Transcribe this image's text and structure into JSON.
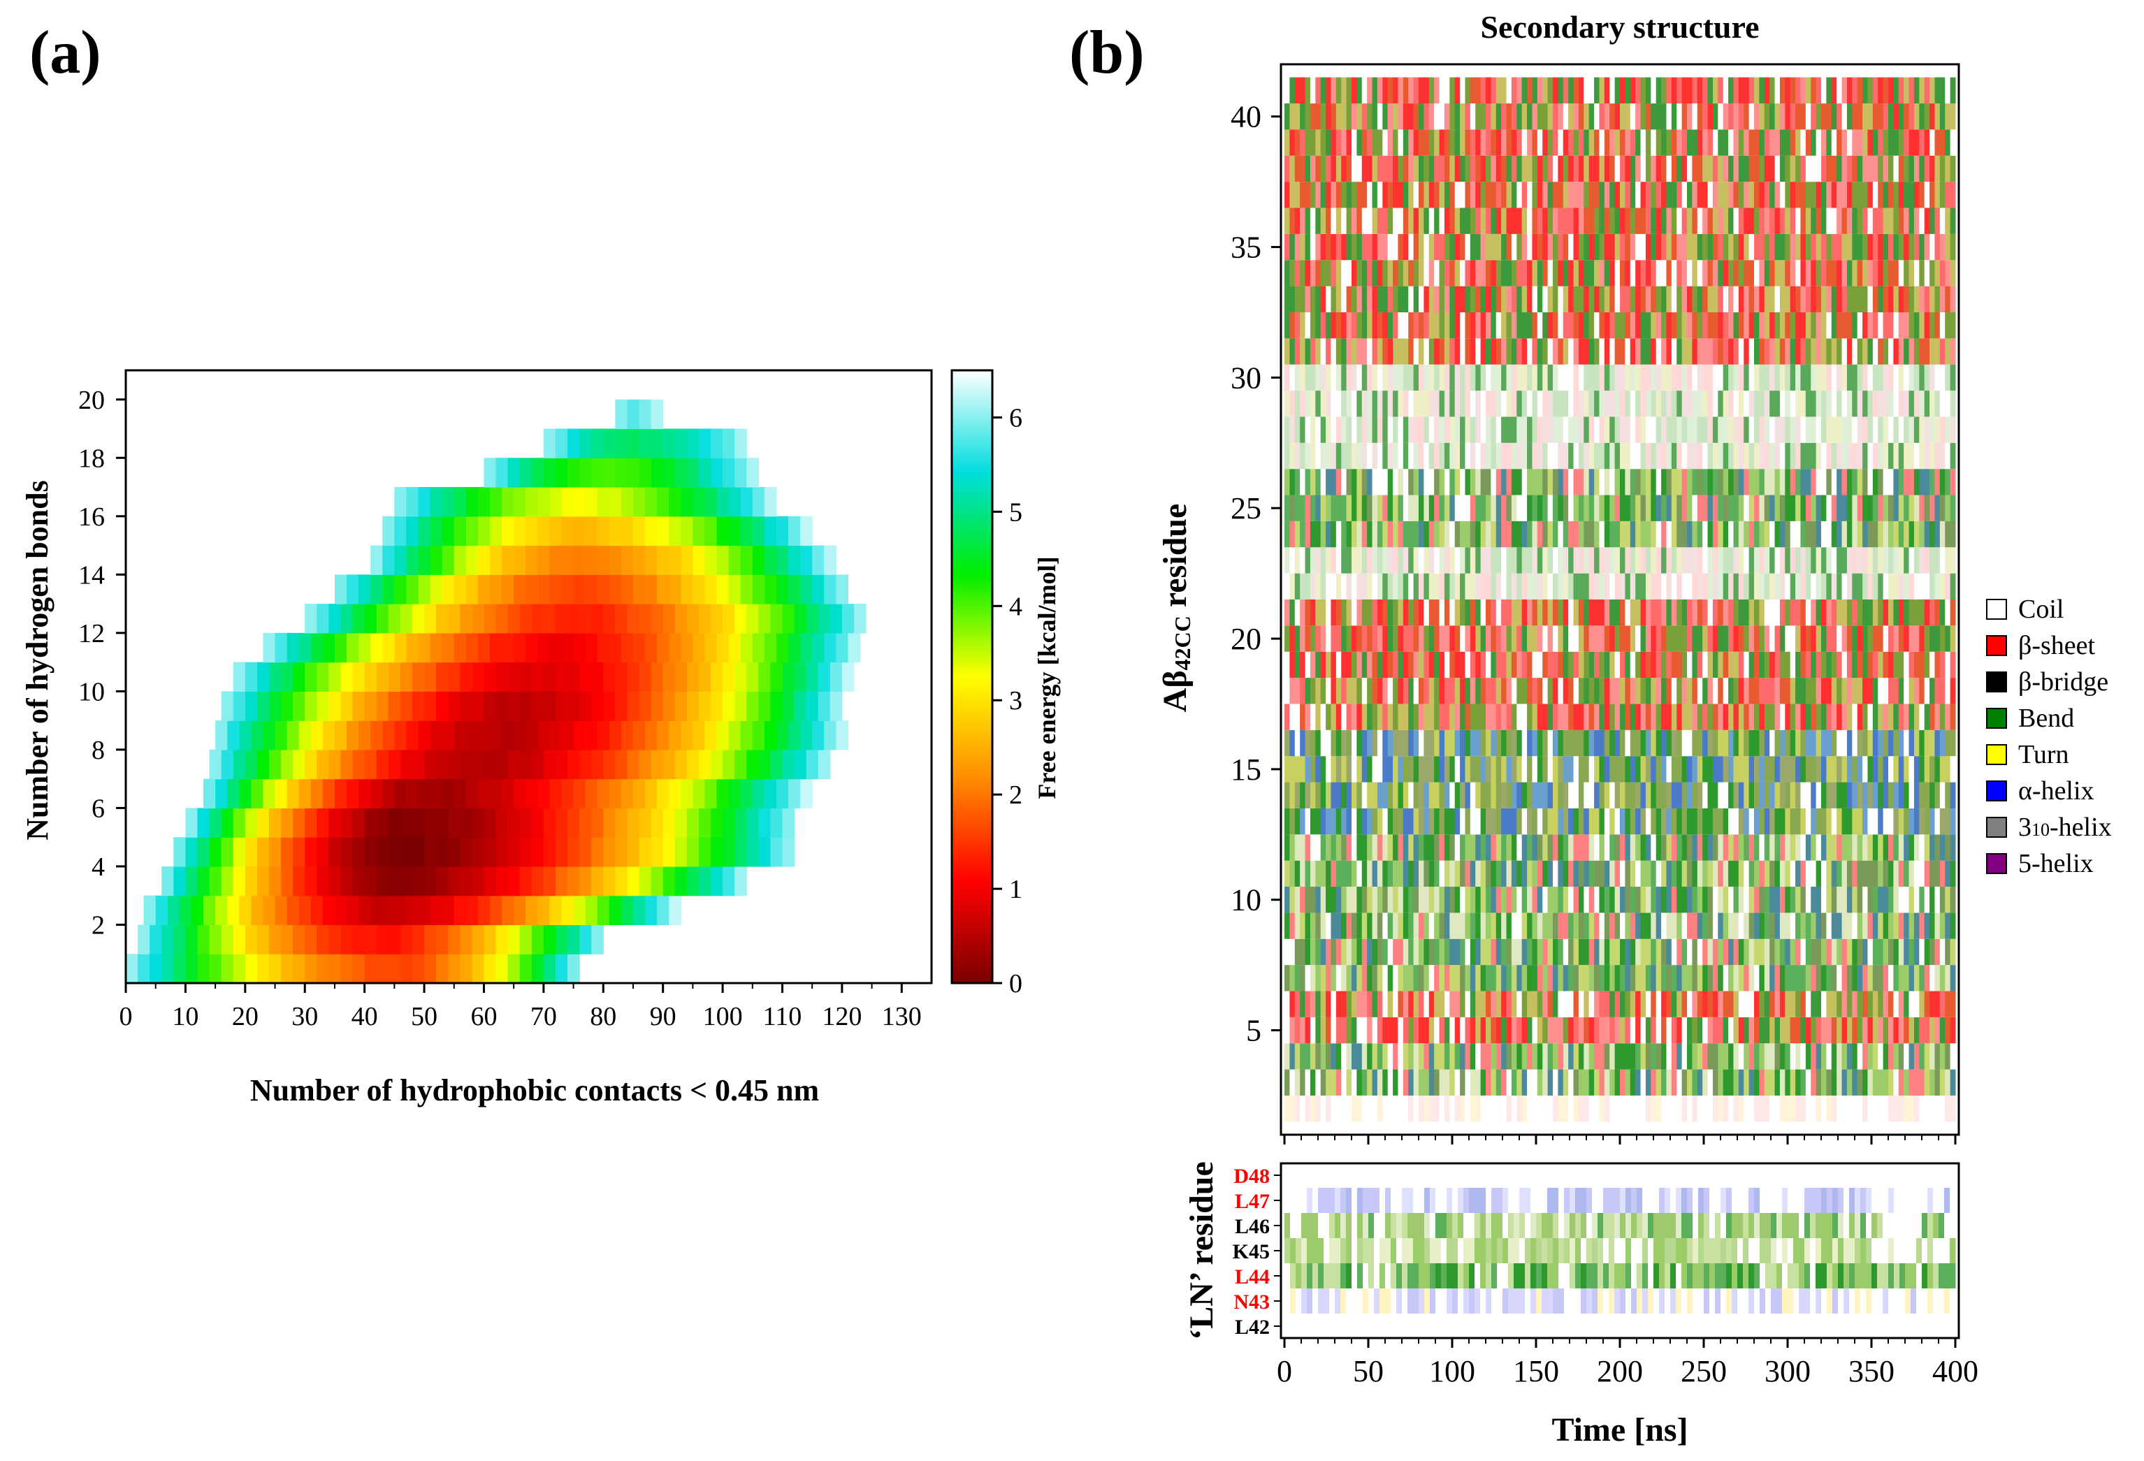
{
  "panels": {
    "a": "(a)",
    "b": "(b)"
  },
  "chart_data": [
    {
      "type": "heatmap",
      "panel": "(a)",
      "xlabel": "Number of hydrophobic contacts < 0.45 nm",
      "ylabel": "Number of hydrogen bonds",
      "colorbar_label": "Free energy [kcal/mol]",
      "xlim": [
        0,
        135
      ],
      "ylim": [
        0,
        21
      ],
      "xticks": [
        0,
        10,
        20,
        30,
        40,
        50,
        60,
        70,
        80,
        90,
        100,
        110,
        120,
        130
      ],
      "yticks": [
        2,
        4,
        6,
        8,
        10,
        12,
        14,
        16,
        18,
        20
      ],
      "colorbar_range": [
        0,
        6.5
      ],
      "colorbar_ticks": [
        0,
        1,
        2,
        3,
        4,
        5,
        6
      ],
      "colormap": [
        "#7a0000",
        "#ff0000",
        "#ff8c00",
        "#ffff00",
        "#00ee00",
        "#00dddd",
        "#ffffff"
      ],
      "minimum": {
        "x": 45,
        "y": 5,
        "energy": 0.0
      },
      "rows": [
        {
          "y": 0.5,
          "x_range": [
            0,
            76
          ],
          "x_min": 46,
          "e_min": 1.6
        },
        {
          "y": 1.5,
          "x_range": [
            2,
            80
          ],
          "x_min": 42,
          "e_min": 1.2
        },
        {
          "y": 2.5,
          "x_range": [
            3,
            92
          ],
          "x_min": 44,
          "e_min": 0.6
        },
        {
          "y": 3.5,
          "x_range": [
            6,
            104
          ],
          "x_min": 45,
          "e_min": 0.15
        },
        {
          "y": 4.5,
          "x_range": [
            8,
            112
          ],
          "x_min": 45,
          "e_min": 0.0
        },
        {
          "y": 5.5,
          "x_range": [
            10,
            112
          ],
          "x_min": 47,
          "e_min": 0.05
        },
        {
          "y": 6.5,
          "x_range": [
            13,
            114
          ],
          "x_min": 50,
          "e_min": 0.3
        },
        {
          "y": 7.5,
          "x_range": [
            14,
            118
          ],
          "x_min": 58,
          "e_min": 0.45
        },
        {
          "y": 8.5,
          "x_range": [
            15,
            120
          ],
          "x_min": 62,
          "e_min": 0.5
        },
        {
          "y": 9.5,
          "x_range": [
            16,
            120
          ],
          "x_min": 66,
          "e_min": 0.55
        },
        {
          "y": 10.5,
          "x_range": [
            18,
            121
          ],
          "x_min": 70,
          "e_min": 0.8
        },
        {
          "y": 11.5,
          "x_range": [
            23,
            122
          ],
          "x_min": 72,
          "e_min": 1.0
        },
        {
          "y": 12.5,
          "x_range": [
            30,
            124
          ],
          "x_min": 75,
          "e_min": 1.3
        },
        {
          "y": 13.5,
          "x_range": [
            35,
            121
          ],
          "x_min": 75,
          "e_min": 1.6
        },
        {
          "y": 14.5,
          "x_range": [
            41,
            118
          ],
          "x_min": 76,
          "e_min": 2.0
        },
        {
          "y": 15.5,
          "x_range": [
            43,
            114
          ],
          "x_min": 76,
          "e_min": 2.6
        },
        {
          "y": 16.5,
          "x_range": [
            45,
            108
          ],
          "x_min": 76,
          "e_min": 3.3
        },
        {
          "y": 17.5,
          "x_range": [
            60,
            105
          ],
          "x_min": 80,
          "e_min": 4.0
        },
        {
          "y": 18.5,
          "x_range": [
            70,
            104
          ],
          "x_min": 84,
          "e_min": 4.8
        },
        {
          "y": 19.5,
          "x_range": [
            82,
            90
          ],
          "x_min": 84,
          "e_min": 5.8
        }
      ]
    },
    {
      "type": "heatmap",
      "panel": "(b)",
      "title": "Secondary structure",
      "ylabel": "Aβ42CC residue",
      "xlabel": "Time [ns]",
      "xlim": [
        0,
        400
      ],
      "xticks": [
        0,
        50,
        100,
        150,
        200,
        250,
        300,
        350,
        400
      ],
      "ylim": [
        1,
        42
      ],
      "yticks": [
        5,
        10,
        15,
        20,
        25,
        30,
        35,
        40
      ],
      "legend": [
        {
          "label": "Coil",
          "color": "#ffffff"
        },
        {
          "label": "β-sheet",
          "color": "#ff0000"
        },
        {
          "label": "β-bridge",
          "color": "#000000"
        },
        {
          "label": "Bend",
          "color": "#008000"
        },
        {
          "label": "Turn",
          "color": "#ffff00"
        },
        {
          "label": "α-helix",
          "color": "#0000ff"
        },
        {
          "label": "310-helix",
          "color": "#808080"
        },
        {
          "label": "5-helix",
          "color": "#800080"
        }
      ],
      "legend_310_parts": {
        "base": "3",
        "sub": "10",
        "rest": "-helix"
      },
      "legend_placement": "right",
      "dominant_structure": [
        {
          "residues": [
            2,
            2
          ],
          "structure": "Coil"
        },
        {
          "residues": [
            3,
            4
          ],
          "structure": "Bend"
        },
        {
          "residues": [
            5,
            6
          ],
          "structure": "β-sheet"
        },
        {
          "residues": [
            7,
            16
          ],
          "structure": "Bend"
        },
        {
          "residues": [
            17,
            21
          ],
          "structure": "β-sheet"
        },
        {
          "residues": [
            22,
            23
          ],
          "structure": "Coil"
        },
        {
          "residues": [
            24,
            26
          ],
          "structure": "Bend"
        },
        {
          "residues": [
            27,
            30
          ],
          "structure": "Coil"
        },
        {
          "residues": [
            31,
            41
          ],
          "structure": "β-sheet"
        }
      ]
    },
    {
      "type": "heatmap",
      "panel": "(b) lower",
      "ylabel": "‘LN’ residue",
      "xlabel": "Time [ns]",
      "xlim": [
        0,
        400
      ],
      "residue_labels": [
        {
          "label": "D48",
          "color": "#ff0000"
        },
        {
          "label": "L47",
          "color": "#ff0000"
        },
        {
          "label": "L46",
          "color": "#000000"
        },
        {
          "label": "K45",
          "color": "#000000"
        },
        {
          "label": "L44",
          "color": "#ff0000"
        },
        {
          "label": "N43",
          "color": "#ff0000"
        },
        {
          "label": "L42",
          "color": "#000000"
        }
      ],
      "dominant_structure": [
        {
          "residue": "L47",
          "structure": "α-helix (faint)"
        },
        {
          "residue": "L46",
          "structure": "Bend"
        },
        {
          "residue": "K45",
          "structure": "Bend"
        },
        {
          "residue": "L44",
          "structure": "Bend"
        },
        {
          "residue": "N43",
          "structure": "α-helix (faint)"
        }
      ]
    }
  ]
}
